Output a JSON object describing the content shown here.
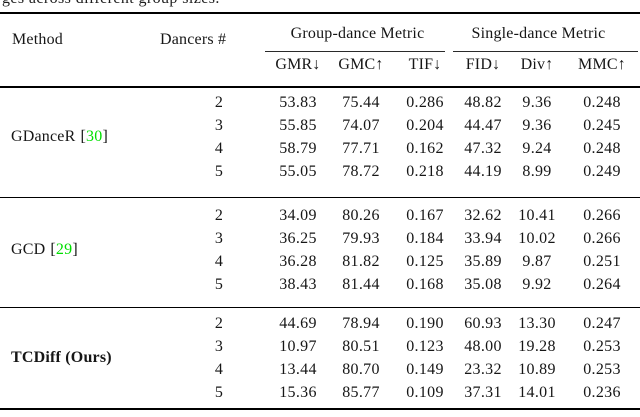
{
  "caption_fragment": "ges across different group sizes.",
  "table": {
    "citation_color": "#00df00",
    "header": {
      "method": "Method",
      "dancers": "Dancers #",
      "group_metric": "Group-dance Metric",
      "single_metric": "Single-dance Metric",
      "sub_headers": [
        "GMR↓",
        "GMC↑",
        "TIF↓",
        "FID↓",
        "Div↑",
        "MMC↑"
      ]
    },
    "sections": [
      {
        "method": "GDanceR",
        "cite_open": "[",
        "citation": "30",
        "cite_close": "]",
        "rows": [
          {
            "dancers": "2",
            "values": [
              "53.83",
              "75.44",
              "0.286",
              "48.82",
              "9.36",
              "0.248"
            ]
          },
          {
            "dancers": "3",
            "values": [
              "55.85",
              "74.07",
              "0.204",
              "44.47",
              "9.36",
              "0.245"
            ]
          },
          {
            "dancers": "4",
            "values": [
              "58.79",
              "77.71",
              "0.162",
              "47.32",
              "9.24",
              "0.248"
            ]
          },
          {
            "dancers": "5",
            "values": [
              "55.05",
              "78.72",
              "0.218",
              "44.19",
              "8.99",
              "0.249"
            ]
          }
        ]
      },
      {
        "method": "GCD",
        "cite_open": "[",
        "citation": "29",
        "cite_close": "]",
        "rows": [
          {
            "dancers": "2",
            "values": [
              "34.09",
              "80.26",
              "0.167",
              "32.62",
              "10.41",
              "0.266"
            ]
          },
          {
            "dancers": "3",
            "values": [
              "36.25",
              "79.93",
              "0.184",
              "33.94",
              "10.02",
              "0.266"
            ]
          },
          {
            "dancers": "4",
            "values": [
              "36.28",
              "81.82",
              "0.125",
              "35.89",
              "9.87",
              "0.251"
            ]
          },
          {
            "dancers": "5",
            "values": [
              "38.43",
              "81.44",
              "0.168",
              "35.08",
              "9.92",
              "0.264"
            ]
          }
        ]
      },
      {
        "method": "TCDiff (Ours)",
        "rows": [
          {
            "dancers": "2",
            "values": [
              "44.69",
              "78.94",
              "0.190",
              "60.93",
              "13.30",
              "0.247"
            ]
          },
          {
            "dancers": "3",
            "values": [
              "10.97",
              "80.51",
              "0.123",
              "48.00",
              "19.28",
              "0.253"
            ]
          },
          {
            "dancers": "4",
            "values": [
              "13.44",
              "80.70",
              "0.149",
              "23.32",
              "10.89",
              "0.253"
            ]
          },
          {
            "dancers": "5",
            "values": [
              "15.36",
              "85.77",
              "0.109",
              "37.31",
              "14.01",
              "0.236"
            ]
          }
        ]
      }
    ]
  }
}
